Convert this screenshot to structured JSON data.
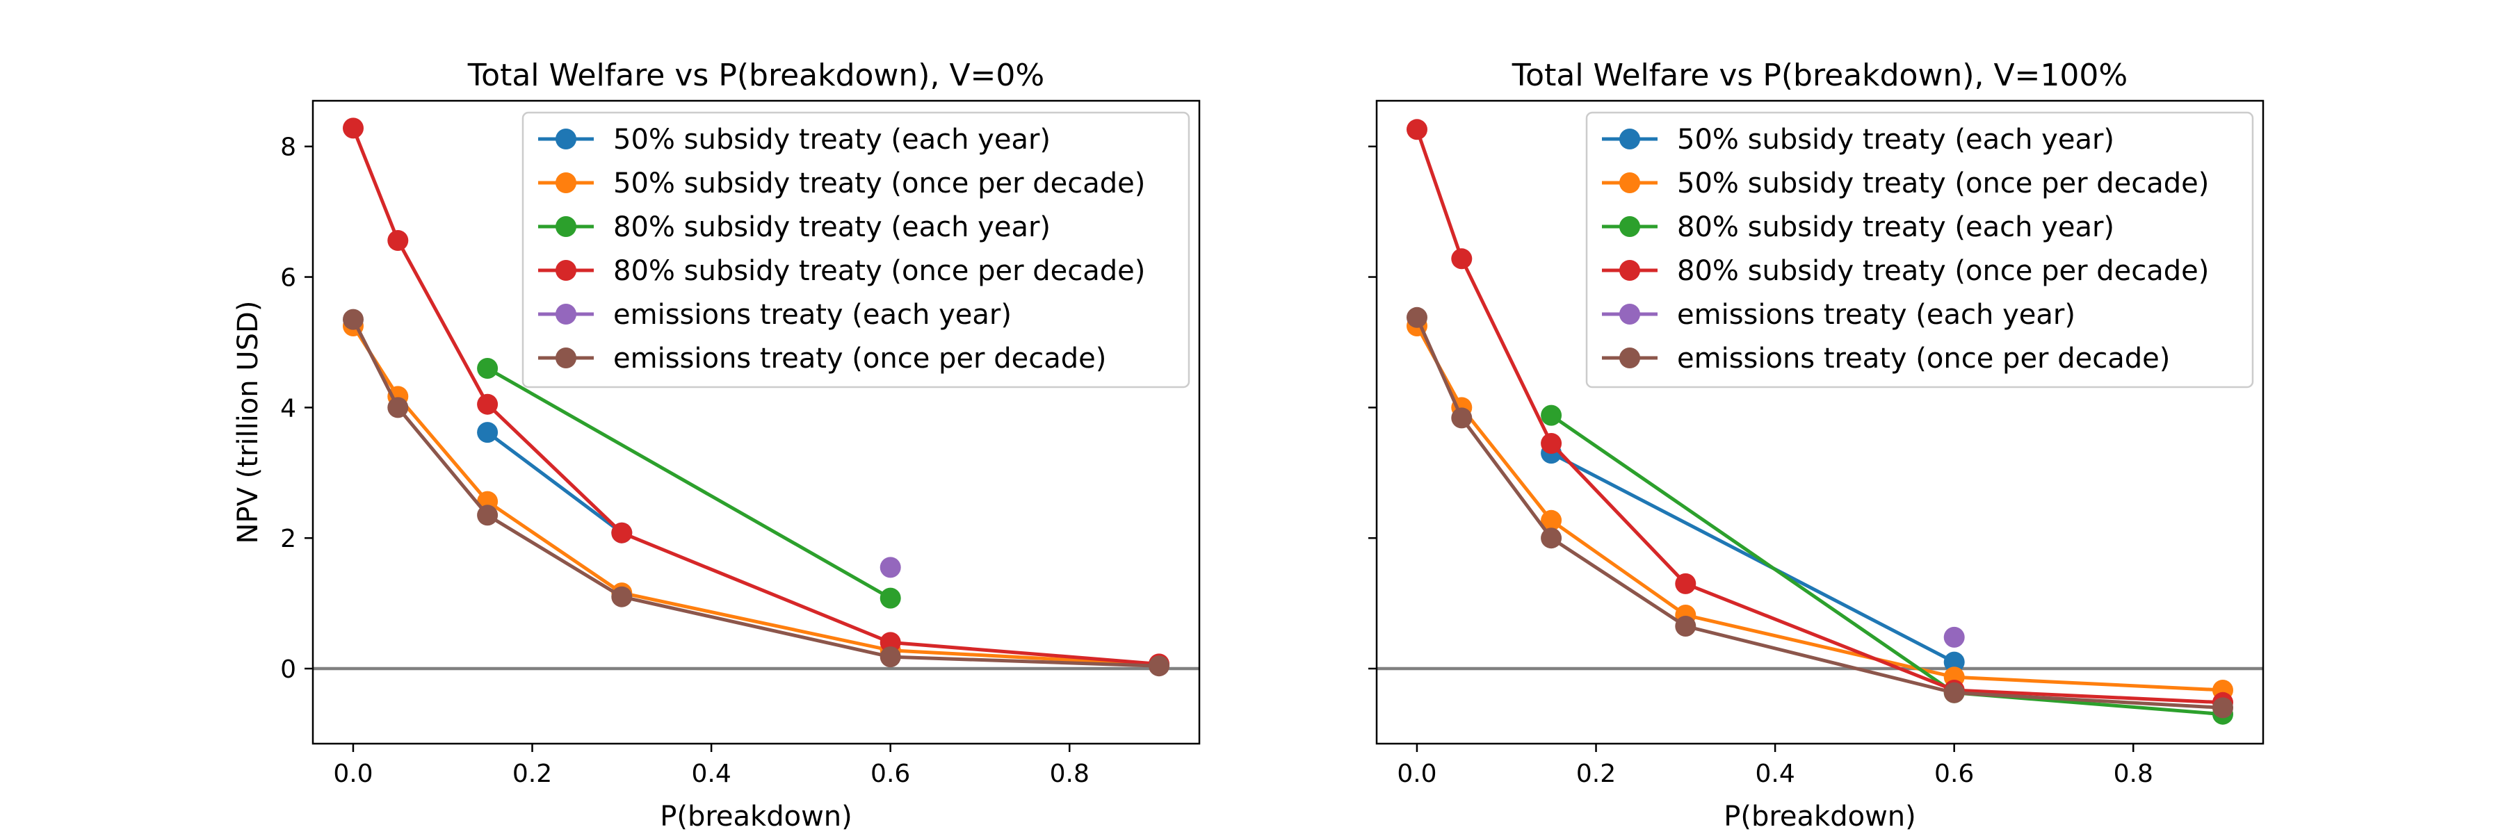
{
  "colors": {
    "50_each": "#1f77b4",
    "50_decade": "#ff7f0e",
    "80_each": "#2ca02c",
    "80_decade": "#d62728",
    "emis_each": "#9467bd",
    "emis_decade": "#8c564b",
    "zero_line": "#808080"
  },
  "chart_data": [
    {
      "type": "line",
      "title": "Total Welfare vs P(breakdown), V=0%",
      "xlabel": "P(breakdown)",
      "ylabel": "NPV (trillion USD)",
      "xlim": [
        -0.045,
        0.945
      ],
      "ylim": [
        -1.15,
        8.7
      ],
      "xticks": [
        0.0,
        0.2,
        0.4,
        0.6,
        0.8
      ],
      "xtick_labels": [
        "0.0",
        "0.2",
        "0.4",
        "0.6",
        "0.8"
      ],
      "yticks": [
        0,
        2,
        4,
        6,
        8
      ],
      "ytick_labels": [
        "0",
        "2",
        "4",
        "6",
        "8"
      ],
      "show_ytick_labels": true,
      "legend_position": "upper right",
      "zero_line": true,
      "series": [
        {
          "name": "50% subsidy treaty (each year)",
          "color_key": "50_each",
          "x": [
            0.15,
            0.3
          ],
          "y": [
            3.62,
            2.08
          ]
        },
        {
          "name": "50% subsidy treaty (once per decade)",
          "color_key": "50_decade",
          "x": [
            0.0,
            0.05,
            0.15,
            0.3,
            0.6,
            0.9
          ],
          "y": [
            5.25,
            4.17,
            2.56,
            1.16,
            0.28,
            0.06
          ]
        },
        {
          "name": "80% subsidy treaty (each year)",
          "color_key": "80_each",
          "x": [
            0.15,
            0.6
          ],
          "y": [
            4.6,
            1.08
          ]
        },
        {
          "name": "80% subsidy treaty (once per decade)",
          "color_key": "80_decade",
          "x": [
            0.0,
            0.05,
            0.15,
            0.3,
            0.6,
            0.9
          ],
          "y": [
            8.28,
            6.56,
            4.05,
            2.08,
            0.4,
            0.07
          ]
        },
        {
          "name": "emissions treaty (each year)",
          "color_key": "emis_each",
          "x": [
            0.6
          ],
          "y": [
            1.55
          ]
        },
        {
          "name": "emissions treaty (once per decade)",
          "color_key": "emis_decade",
          "x": [
            0.0,
            0.05,
            0.15,
            0.3,
            0.6,
            0.9
          ],
          "y": [
            5.35,
            4.0,
            2.35,
            1.1,
            0.18,
            0.04
          ]
        }
      ]
    },
    {
      "type": "line",
      "title": "Total Welfare vs P(breakdown), V=100%",
      "xlabel": "P(breakdown)",
      "ylabel": "",
      "xlim": [
        -0.045,
        0.945
      ],
      "ylim": [
        -1.15,
        8.7
      ],
      "xticks": [
        0.0,
        0.2,
        0.4,
        0.6,
        0.8
      ],
      "xtick_labels": [
        "0.0",
        "0.2",
        "0.4",
        "0.6",
        "0.8"
      ],
      "yticks": [
        0,
        2,
        4,
        6,
        8
      ],
      "ytick_labels": [],
      "show_ytick_labels": false,
      "legend_position": "upper right",
      "zero_line": true,
      "series": [
        {
          "name": "50% subsidy treaty (each year)",
          "color_key": "50_each",
          "x": [
            0.15,
            0.6
          ],
          "y": [
            3.3,
            0.1
          ]
        },
        {
          "name": "50% subsidy treaty (once per decade)",
          "color_key": "50_decade",
          "x": [
            0.0,
            0.05,
            0.15,
            0.3,
            0.6,
            0.9
          ],
          "y": [
            5.25,
            4.0,
            2.27,
            0.82,
            -0.13,
            -0.33
          ]
        },
        {
          "name": "80% subsidy treaty (each year)",
          "color_key": "80_each",
          "x": [
            0.15,
            0.6,
            0.9
          ],
          "y": [
            3.88,
            -0.37,
            -0.7
          ]
        },
        {
          "name": "80% subsidy treaty (once per decade)",
          "color_key": "80_decade",
          "x": [
            0.0,
            0.05,
            0.15,
            0.3,
            0.6,
            0.9
          ],
          "y": [
            8.26,
            6.28,
            3.45,
            1.3,
            -0.33,
            -0.52
          ]
        },
        {
          "name": "emissions treaty (each year)",
          "color_key": "emis_each",
          "x": [
            0.6
          ],
          "y": [
            0.48
          ]
        },
        {
          "name": "emissions treaty (once per decade)",
          "color_key": "emis_decade",
          "x": [
            0.0,
            0.05,
            0.15,
            0.3,
            0.6,
            0.9
          ],
          "y": [
            5.38,
            3.84,
            2.0,
            0.65,
            -0.37,
            -0.6
          ]
        }
      ]
    }
  ]
}
